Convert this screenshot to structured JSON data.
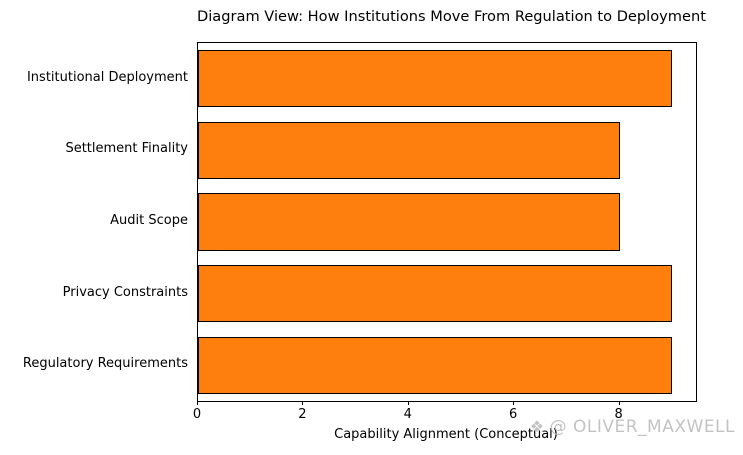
{
  "chart_data": {
    "type": "bar",
    "orientation": "horizontal",
    "title": "Diagram View: How Institutions Move From Regulation to Deployment",
    "categories_top_to_bottom": [
      "Institutional Deployment",
      "Settlement Finality",
      "Audit Scope",
      "Privacy Constraints",
      "Regulatory Requirements"
    ],
    "values": [
      9,
      8,
      8,
      9,
      9
    ],
    "xlabel": "Capability Alignment (Conceptual)",
    "ylabel": "",
    "xlim": [
      0,
      9.45
    ],
    "xticks": [
      0,
      2,
      4,
      6,
      8
    ],
    "bar_color": "#ff7f0e",
    "bar_edge_color": "#000000",
    "grid": false,
    "legend": null
  },
  "watermark": {
    "icon": "❖",
    "text": "@ OLIVER_MAXWELL",
    "color": "#bdbdbd"
  }
}
